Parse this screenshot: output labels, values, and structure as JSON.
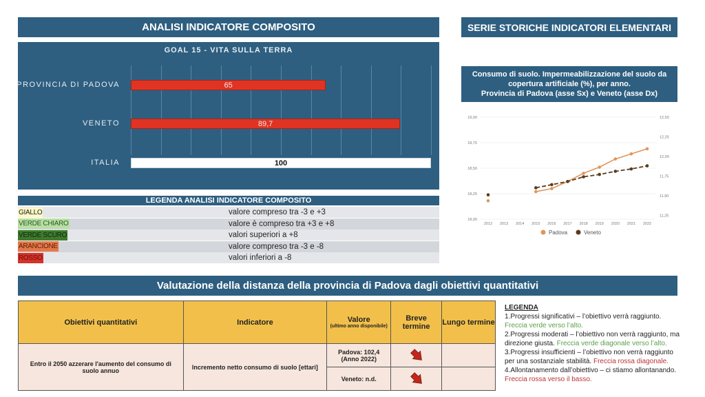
{
  "left_panel": {
    "title": "ANALISI INDICATORE COMPOSITO",
    "bar_chart_title": "GOAL 15 - VITA SULLA TERRA"
  },
  "right_panel": {
    "title": "SERIE STORICHE INDICATORI ELEMENTARI",
    "chart_title_lines": [
      "Consumo di suolo. Impermeabilizzazione del suolo da",
      "copertura artificiale (%), per anno.",
      "Provincia di Padova (asse Sx) e Veneto (asse Dx)"
    ]
  },
  "composite_legend": {
    "title": "LEGENDA ANALISI INDICATORE COMPOSITO",
    "rows": [
      {
        "name": "GIALLO",
        "desc": "valore compreso tra -3 e +3",
        "color": "#fdf8c8",
        "text_color": "#222222"
      },
      {
        "name": "VERDE CHIARO",
        "desc": "valore è compreso tra +3 e +8",
        "color": "#b7dfa4",
        "text_color": "#2d5a23"
      },
      {
        "name": "VERDE SCURO",
        "desc": "valori superiori a +8",
        "color": "#3e7a2e",
        "text_color": "#0f2a0a"
      },
      {
        "name": "ARANCIONE",
        "desc": "valore compreso tra -3 e -8",
        "color": "#e5784a",
        "text_color": "#5a1f05"
      },
      {
        "name": "ROSSO",
        "desc": "valori inferiori a -8",
        "color": "#d2332a",
        "text_color": "#7a0f0a"
      }
    ]
  },
  "section": {
    "title": "Valutazione della distanza della provincia di Padova dagli obiettivi quantitativi"
  },
  "objectives_table": {
    "headers": {
      "objective": "Obiettivi quantitativi",
      "indicator": "Indicatore",
      "value": "Valore",
      "value_sub": "(ultimo anno disponibile)",
      "short_term": "Breve termine",
      "long_term": "Lungo termine"
    },
    "row": {
      "objective": "Entro il 2050 azzerare l'aumento del consumo di suolo annuo",
      "indicator": "Incremento netto consumo di suolo [ettari]",
      "values": [
        {
          "text": "Padova: 102,4",
          "sub": "(Anno 2022)",
          "short_term_icon": "red-diagonal-down-arrow",
          "long_term": ""
        },
        {
          "text": "Veneto: n.d.",
          "sub": "",
          "short_term_icon": "red-diagonal-down-arrow",
          "long_term": ""
        }
      ]
    }
  },
  "arrow_legend": {
    "title": "LEGENDA",
    "items": [
      {
        "text": "1.Progressi significativi – l’obiettivo verrà raggiunto. ",
        "colored": "Freccia verde verso l’alto.",
        "color": "green"
      },
      {
        "text": "2.Progressi moderati – l’obiettivo non verrà raggiunto, ma direzione giusta. ",
        "colored": "Freccia verde diagonale verso l’alto.",
        "color": "green"
      },
      {
        "text": "3.Progressi insufficienti – l’obiettivo non verrà raggiunto per una sostanziale stabilità. ",
        "colored": "Freccia rossa diagonale.",
        "color": "red"
      },
      {
        "text": "4.Allontanamento dall’obiettivo – ci stiamo allontanando. ",
        "colored": "Freccia rossa verso il basso.",
        "color": "red"
      }
    ]
  },
  "colors": {
    "banner": "#2e5f80",
    "bar_red": "#e03323",
    "padova": "#e0955a",
    "veneto": "#5a3a1e",
    "header_yellow": "#f2c04a"
  },
  "chart_data": [
    {
      "type": "bar",
      "orientation": "horizontal",
      "title": "GOAL 15 - VITA SULLA TERRA",
      "categories": [
        "PROVINCIA DI PADOVA",
        "VENETO",
        "ITALIA"
      ],
      "values": [
        65,
        89.7
      ],
      "value_labels": [
        "65",
        "89,7",
        "100"
      ],
      "values_full": [
        65,
        89.7,
        100
      ],
      "bar_colors": [
        "#e03323",
        "#e03323",
        "#ffffff"
      ],
      "xlim": [
        0,
        100
      ],
      "grid": true
    },
    {
      "type": "line",
      "title": "Consumo di suolo. Impermeabilizzazione del suolo da copertura artificiale (%), per anno. Provincia di Padova (asse Sx) e Veneto (asse Dx)",
      "x": [
        "2012",
        "2013",
        "2014",
        "2015",
        "2016",
        "2017",
        "2018",
        "2019",
        "2020",
        "2021",
        "2022"
      ],
      "series": [
        {
          "name": "Padova",
          "axis": "left",
          "style": "solid",
          "values": [
            18.18,
            null,
            null,
            18.27,
            18.3,
            18.37,
            18.45,
            18.51,
            18.59,
            18.64,
            18.69
          ]
        },
        {
          "name": "Veneto",
          "axis": "right",
          "style": "dashed",
          "values": [
            11.51,
            null,
            null,
            11.6,
            11.64,
            11.68,
            11.74,
            11.77,
            11.81,
            11.84,
            11.88
          ]
        }
      ],
      "ylim_left": [
        18.0,
        19.0
      ],
      "yticks_left": [
        "18,00",
        "18,25",
        "18,50",
        "18,75",
        "19,00"
      ],
      "ylim_right": [
        11.2,
        12.5
      ],
      "yticks_right": [
        "11,25",
        "11,50",
        "11,75",
        "12,00",
        "12,25",
        "12,50"
      ],
      "legend": "bottom",
      "grid": true
    }
  ]
}
